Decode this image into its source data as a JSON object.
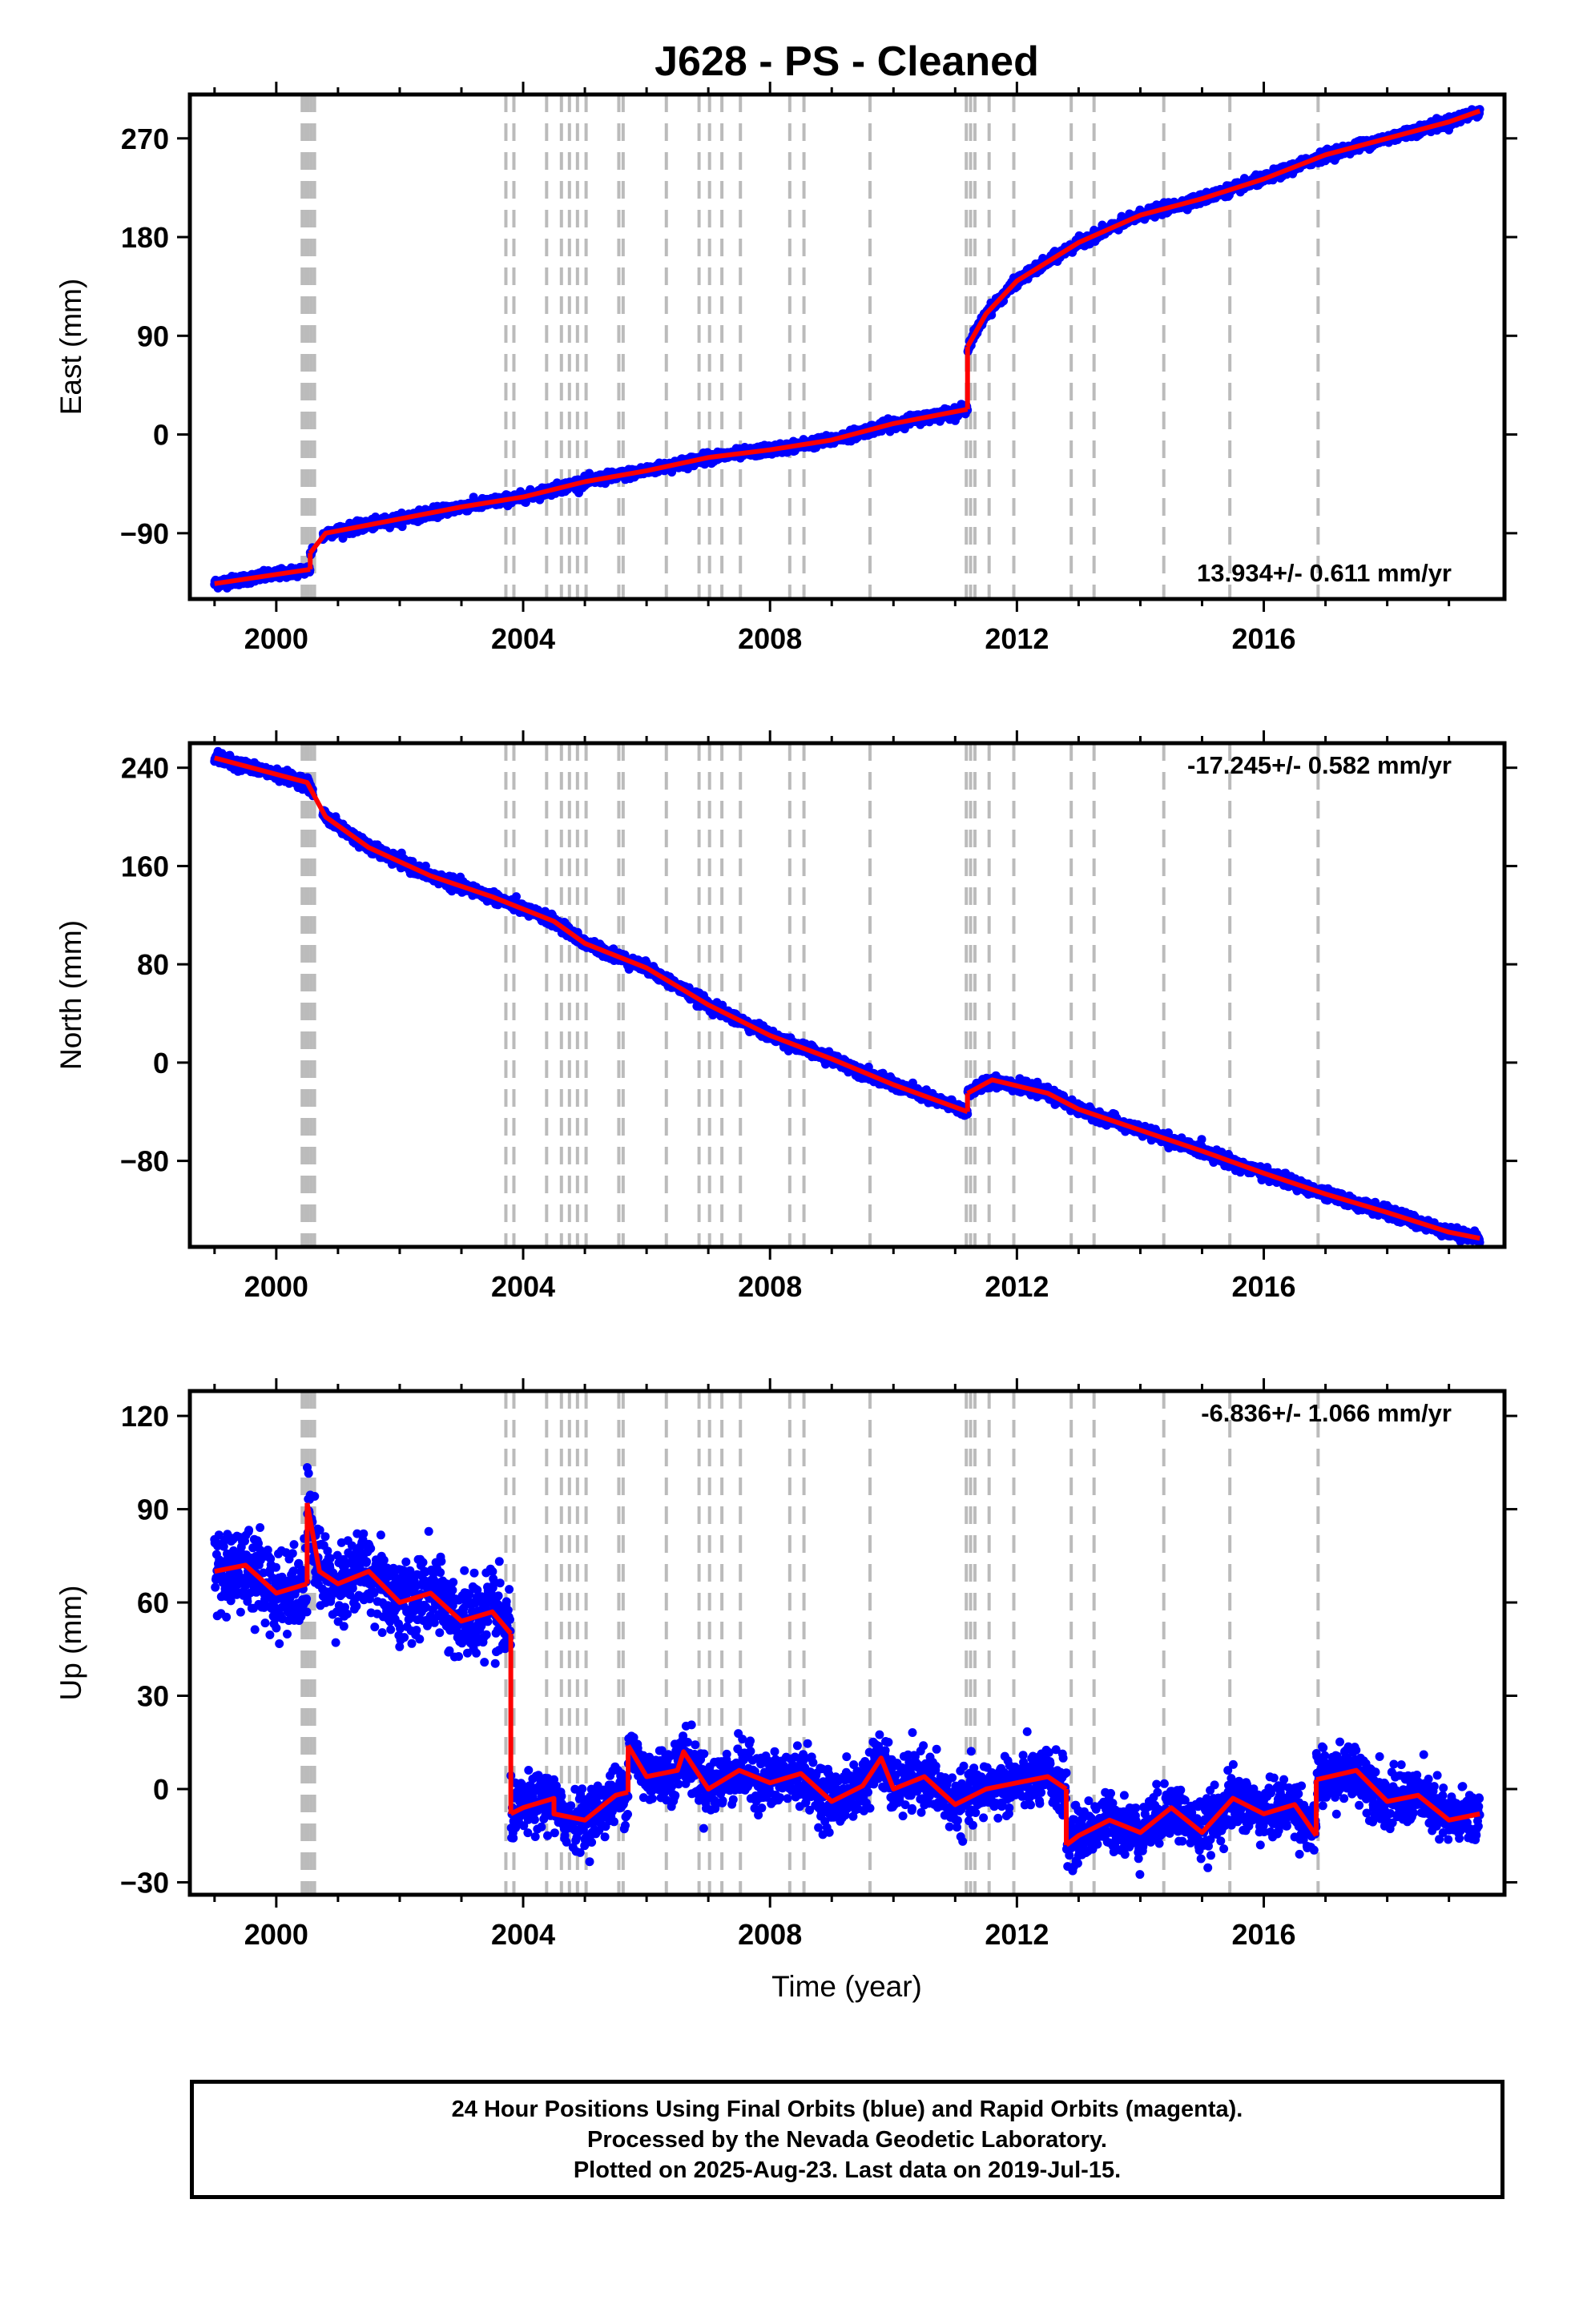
{
  "title": "J628  - PS - Cleaned",
  "xlabel": "Time (year)",
  "colors": {
    "data": "#0000ff",
    "model": "#ff0000",
    "events": "#bbbbbb",
    "frame": "#000000"
  },
  "chart_data": [
    {
      "type": "scatter",
      "panel": "east",
      "ylabel": "East (mm)",
      "rate_label": "13.934+/- 0.611 mm/yr",
      "rate_position": "bottom-right",
      "xlim": [
        1998.6,
        2019.9
      ],
      "ylim": [
        -150,
        310
      ],
      "yticks": [
        -90,
        0,
        90,
        180,
        270
      ],
      "xticks": [
        2000,
        2004,
        2008,
        2012,
        2016
      ],
      "model_segments": [
        [
          [
            1999.0,
            -136
          ],
          [
            2000.55,
            -123
          ]
        ],
        [
          [
            2000.55,
            -108
          ],
          [
            2000.8,
            -90
          ],
          [
            2002.0,
            -77
          ],
          [
            2003.0,
            -66
          ],
          [
            2004.0,
            -57
          ],
          [
            2005.0,
            -43
          ],
          [
            2006.0,
            -33
          ],
          [
            2007.0,
            -21
          ],
          [
            2008.0,
            -14
          ],
          [
            2009.0,
            -5
          ],
          [
            2010.0,
            10
          ],
          [
            2011.2,
            23
          ]
        ],
        [
          [
            2011.2,
            80
          ],
          [
            2011.5,
            110
          ],
          [
            2012.0,
            140
          ],
          [
            2013.0,
            175
          ],
          [
            2014.0,
            200
          ],
          [
            2015.0,
            215
          ],
          [
            2016.0,
            233
          ],
          [
            2017.0,
            255
          ],
          [
            2018.0,
            270
          ],
          [
            2019.0,
            285
          ],
          [
            2019.5,
            295
          ]
        ]
      ],
      "scatter_noise": 4
    },
    {
      "type": "scatter",
      "panel": "north",
      "ylabel": "North (mm)",
      "rate_label": "-17.245+/- 0.582 mm/yr",
      "rate_position": "top-right",
      "xlim": [
        1998.6,
        2019.9
      ],
      "ylim": [
        -150,
        260
      ],
      "yticks": [
        -80,
        0,
        80,
        160,
        240
      ],
      "xticks": [
        2000,
        2004,
        2008,
        2012,
        2016
      ],
      "model_segments": [
        [
          [
            1999.0,
            248
          ],
          [
            2000.5,
            228
          ],
          [
            2000.8,
            200
          ],
          [
            2001.5,
            175
          ],
          [
            2002.5,
            152
          ],
          [
            2003.5,
            135
          ],
          [
            2004.5,
            115
          ],
          [
            2005.0,
            97
          ],
          [
            2006.0,
            77
          ],
          [
            2007.0,
            47
          ],
          [
            2008.0,
            22
          ],
          [
            2009.0,
            3
          ],
          [
            2010.0,
            -18
          ],
          [
            2011.2,
            -40
          ]
        ],
        [
          [
            2011.2,
            -25
          ],
          [
            2011.6,
            -14
          ],
          [
            2012.5,
            -25
          ],
          [
            2013.0,
            -38
          ],
          [
            2014.0,
            -55
          ],
          [
            2015.0,
            -72
          ],
          [
            2016.0,
            -90
          ],
          [
            2017.0,
            -107
          ],
          [
            2018.0,
            -122
          ],
          [
            2019.0,
            -138
          ],
          [
            2019.5,
            -143
          ]
        ]
      ],
      "scatter_noise": 4
    },
    {
      "type": "scatter",
      "panel": "up",
      "ylabel": "Up (mm)",
      "rate_label": "-6.836+/- 1.066 mm/yr",
      "rate_position": "top-right",
      "xlim": [
        1998.6,
        2019.9
      ],
      "ylim": [
        -34,
        128
      ],
      "yticks": [
        -30,
        0,
        30,
        60,
        90,
        120
      ],
      "xticks": [
        2000,
        2004,
        2008,
        2012,
        2016
      ],
      "model_segments": [
        [
          [
            1999.0,
            70
          ],
          [
            1999.5,
            72
          ],
          [
            2000.0,
            63
          ],
          [
            2000.5,
            66
          ]
        ],
        [
          [
            2000.5,
            92
          ],
          [
            2000.7,
            70
          ],
          [
            2001.0,
            66
          ],
          [
            2001.5,
            70
          ],
          [
            2002.0,
            60
          ],
          [
            2002.5,
            63
          ],
          [
            2003.0,
            54
          ],
          [
            2003.5,
            57
          ],
          [
            2003.8,
            50
          ]
        ],
        [
          [
            2003.8,
            -8
          ],
          [
            2004.0,
            -6
          ],
          [
            2004.5,
            -3
          ],
          [
            2004.5,
            -8
          ],
          [
            2005.0,
            -10
          ],
          [
            2005.5,
            -2
          ],
          [
            2005.7,
            -1
          ]
        ],
        [
          [
            2005.7,
            14
          ],
          [
            2006.0,
            4
          ],
          [
            2006.5,
            6
          ],
          [
            2006.6,
            12
          ],
          [
            2007.0,
            0
          ],
          [
            2007.5,
            6
          ],
          [
            2008.0,
            2
          ],
          [
            2008.5,
            5
          ],
          [
            2009.0,
            -4
          ],
          [
            2009.5,
            1
          ],
          [
            2009.8,
            10
          ],
          [
            2010.0,
            0
          ],
          [
            2010.5,
            4
          ],
          [
            2011.0,
            -5
          ],
          [
            2011.5,
            0
          ],
          [
            2012.0,
            2
          ],
          [
            2012.5,
            4
          ],
          [
            2012.8,
            0
          ]
        ],
        [
          [
            2012.8,
            -18
          ],
          [
            2013.0,
            -15
          ],
          [
            2013.5,
            -10
          ],
          [
            2014.0,
            -14
          ],
          [
            2014.5,
            -6
          ],
          [
            2015.0,
            -14
          ],
          [
            2015.5,
            -3
          ],
          [
            2016.0,
            -8
          ],
          [
            2016.5,
            -5
          ],
          [
            2016.85,
            -15
          ]
        ],
        [
          [
            2016.85,
            3
          ],
          [
            2017.5,
            6
          ],
          [
            2018.0,
            -4
          ],
          [
            2018.5,
            -2
          ],
          [
            2019.0,
            -10
          ],
          [
            2019.5,
            -8
          ]
        ]
      ],
      "scatter_noise": 8,
      "scatter_noise_pre2003": 12
    }
  ],
  "event_lines": [
    2000.42,
    2000.47,
    2000.52,
    2000.57,
    2000.62,
    2003.72,
    2003.85,
    2004.38,
    2004.62,
    2004.75,
    2004.88,
    2005.02,
    2005.55,
    2005.62,
    2006.32,
    2006.85,
    2007.02,
    2007.22,
    2007.52,
    2008.32,
    2008.55,
    2009.62,
    2011.18,
    2011.25,
    2011.32,
    2011.55,
    2011.95,
    2012.88,
    2013.25,
    2014.38,
    2015.45,
    2016.88
  ],
  "footer": {
    "line1": "24 Hour Positions Using Final Orbits (blue) and Rapid Orbits (magenta).",
    "line2": "Processed by the Nevada Geodetic Laboratory.",
    "line3": "Plotted on 2025-Aug-23. Last data on 2019-Jul-15."
  }
}
